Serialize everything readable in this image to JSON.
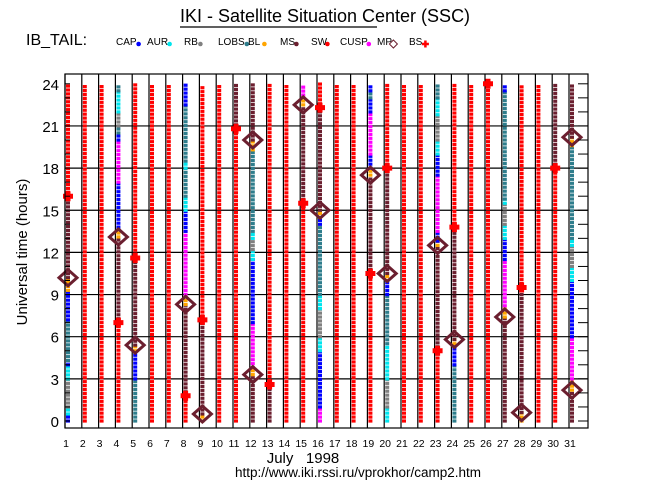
{
  "chart_data": {
    "type": "scatter",
    "title": "IKI - Satellite Situation Center (SSC)",
    "subtitle": "IB_TAIL:",
    "xlabel": "July   1998",
    "ylabel": "Universal time (hours)",
    "footer": "http://www.iki.rssi.ru/vprokhor/camp2.htm",
    "xlim": [
      1,
      31
    ],
    "ylim": [
      0,
      24
    ],
    "x_ticks": [
      1,
      2,
      3,
      4,
      5,
      6,
      7,
      8,
      9,
      10,
      11,
      12,
      13,
      14,
      15,
      16,
      17,
      18,
      19,
      20,
      21,
      22,
      23,
      24,
      25,
      26,
      27,
      28,
      29,
      30,
      31
    ],
    "y_ticks": [
      0,
      3,
      6,
      9,
      12,
      15,
      18,
      21,
      24
    ],
    "grid": true,
    "legend_position": "top",
    "legend": [
      {
        "key": "CAP",
        "label": "CAP",
        "color": "#0000ff",
        "marker": "dot"
      },
      {
        "key": "AUR",
        "label": "AUR",
        "color": "#00e5ee",
        "marker": "dot"
      },
      {
        "key": "RB",
        "label": "RB",
        "color": "#808080",
        "marker": "dot"
      },
      {
        "key": "LOBS",
        "label": "LOBS",
        "color": "#2e7d8c",
        "marker": "dot"
      },
      {
        "key": "BL",
        "label": "BL",
        "color": "#ffa500",
        "marker": "dot"
      },
      {
        "key": "MS",
        "label": "MS",
        "color": "#6b1f2f",
        "marker": "dot"
      },
      {
        "key": "SW",
        "label": "SW",
        "color": "#ff0000",
        "marker": "dot"
      },
      {
        "key": "CUSP",
        "label": "CUSP",
        "color": "#ff00ff",
        "marker": "dot"
      },
      {
        "key": "MP",
        "label": "MP",
        "color": "#6b1f2f",
        "marker": "diamond"
      },
      {
        "key": "BS",
        "label": "BS",
        "color": "#ff0000",
        "marker": "cross"
      }
    ],
    "days": [
      {
        "day": 1,
        "segments": [
          [
            0,
            0.5,
            "CAP"
          ],
          [
            0.5,
            1,
            "AUR"
          ],
          [
            1,
            3,
            "RB"
          ],
          [
            3,
            4,
            "AUR"
          ],
          [
            4,
            4.3,
            "CAP"
          ],
          [
            4.3,
            7.2,
            "LOBS"
          ],
          [
            7.2,
            9.3,
            "CAP"
          ],
          [
            9.3,
            10.2,
            "BL"
          ],
          [
            10.2,
            16,
            "MS"
          ],
          [
            16,
            24,
            "SW"
          ]
        ],
        "MP": [
          10.2
        ],
        "BS": [
          16
        ]
      },
      {
        "day": 2,
        "segments": [
          [
            0,
            24,
            "SW"
          ]
        ],
        "MP": [],
        "BS": []
      },
      {
        "day": 3,
        "segments": [
          [
            0,
            24,
            "SW"
          ]
        ],
        "MP": [],
        "BS": []
      },
      {
        "day": 4,
        "segments": [
          [
            0,
            7,
            "SW"
          ],
          [
            7,
            13.1,
            "MS"
          ],
          [
            13.1,
            13.8,
            "BL"
          ],
          [
            13.8,
            17,
            "CAP"
          ],
          [
            17,
            20,
            "CUSP"
          ],
          [
            20,
            20.5,
            "CAP"
          ],
          [
            20.5,
            21,
            "LOBS"
          ],
          [
            21,
            22,
            "RB"
          ],
          [
            22,
            23.5,
            "AUR"
          ],
          [
            23.5,
            24,
            "LOBS"
          ]
        ],
        "MP": [
          13.1
        ],
        "BS": [
          7
        ]
      },
      {
        "day": 5,
        "segments": [
          [
            0,
            3,
            "LOBS"
          ],
          [
            3,
            5,
            "CAP"
          ],
          [
            5,
            5.4,
            "BL"
          ],
          [
            5.4,
            11.6,
            "MS"
          ],
          [
            11.6,
            24,
            "SW"
          ]
        ],
        "MP": [
          5.4
        ],
        "BS": [
          11.6
        ]
      },
      {
        "day": 6,
        "segments": [
          [
            0,
            24,
            "SW"
          ]
        ],
        "MP": [],
        "BS": []
      },
      {
        "day": 7,
        "segments": [
          [
            0,
            24,
            "SW"
          ]
        ],
        "MP": [],
        "BS": []
      },
      {
        "day": 8,
        "segments": [
          [
            0,
            1.8,
            "SW"
          ],
          [
            1.8,
            8.3,
            "MS"
          ],
          [
            8.3,
            9,
            "BL"
          ],
          [
            9,
            13.5,
            "CUSP"
          ],
          [
            13.5,
            15,
            "CAP"
          ],
          [
            15,
            16,
            "AUR"
          ],
          [
            16,
            18,
            "LOBS"
          ],
          [
            18,
            18.5,
            "AUR"
          ],
          [
            18.5,
            22.5,
            "LOBS"
          ],
          [
            22.5,
            24,
            "CAP"
          ]
        ],
        "MP": [
          8.3
        ],
        "BS": [
          1.8
        ]
      },
      {
        "day": 9,
        "segments": [
          [
            0,
            0.5,
            "BL"
          ],
          [
            0.5,
            7.2,
            "MS"
          ],
          [
            7.2,
            24,
            "SW"
          ]
        ],
        "MP": [
          0.5
        ],
        "BS": [
          7.2
        ]
      },
      {
        "day": 10,
        "segments": [
          [
            0,
            24,
            "SW"
          ]
        ],
        "MP": [],
        "BS": []
      },
      {
        "day": 11,
        "segments": [
          [
            0,
            20.8,
            "SW"
          ],
          [
            20.8,
            24,
            "MS"
          ]
        ],
        "MP": [],
        "BS": [
          20.8
        ]
      },
      {
        "day": 12,
        "segments": [
          [
            0,
            3.3,
            "MS"
          ],
          [
            3.3,
            3.8,
            "BL"
          ],
          [
            3.8,
            7,
            "CUSP"
          ],
          [
            7,
            11.5,
            "CAP"
          ],
          [
            11.5,
            12.2,
            "AUR"
          ],
          [
            12.2,
            13,
            "RB"
          ],
          [
            13,
            13.5,
            "AUR"
          ],
          [
            13.5,
            19.3,
            "LOBS"
          ],
          [
            19.3,
            20,
            "BL"
          ],
          [
            20,
            24,
            "MS"
          ]
        ],
        "MP": [
          3.3,
          20
        ],
        "BS": []
      },
      {
        "day": 13,
        "segments": [
          [
            0,
            2.6,
            "MS"
          ],
          [
            2.6,
            24,
            "SW"
          ]
        ],
        "MP": [],
        "BS": [
          2.6
        ]
      },
      {
        "day": 14,
        "segments": [
          [
            0,
            24,
            "SW"
          ]
        ],
        "MP": [],
        "BS": []
      },
      {
        "day": 15,
        "segments": [
          [
            0,
            15.5,
            "SW"
          ],
          [
            15.5,
            22.5,
            "MS"
          ],
          [
            22.5,
            23.2,
            "BL"
          ],
          [
            23.2,
            24,
            "CUSP"
          ]
        ],
        "MP": [
          22.5
        ],
        "BS": [
          15.5
        ]
      },
      {
        "day": 16,
        "segments": [
          [
            0,
            1,
            "CUSP"
          ],
          [
            1,
            5,
            "CAP"
          ],
          [
            5,
            6,
            "AUR"
          ],
          [
            6,
            8,
            "RB"
          ],
          [
            8,
            9,
            "AUR"
          ],
          [
            9,
            14,
            "LOBS"
          ],
          [
            14,
            14.5,
            "CAP"
          ],
          [
            14.5,
            15,
            "BL"
          ],
          [
            15,
            22.3,
            "MS"
          ],
          [
            22.3,
            24,
            "SW"
          ]
        ],
        "MP": [
          15
        ],
        "BS": [
          22.3
        ]
      },
      {
        "day": 17,
        "segments": [
          [
            0,
            24,
            "SW"
          ]
        ],
        "MP": [],
        "BS": []
      },
      {
        "day": 18,
        "segments": [
          [
            0,
            24,
            "SW"
          ]
        ],
        "MP": [],
        "BS": []
      },
      {
        "day": 19,
        "segments": [
          [
            0,
            10.5,
            "SW"
          ],
          [
            10.5,
            17.5,
            "MS"
          ],
          [
            17.5,
            18,
            "BL"
          ],
          [
            18,
            19,
            "CAP"
          ],
          [
            19,
            22,
            "CUSP"
          ],
          [
            22,
            23,
            "CAP"
          ],
          [
            23,
            23.5,
            "LOBS"
          ],
          [
            23.5,
            24,
            "CAP"
          ]
        ],
        "MP": [
          17.5
        ],
        "BS": [
          10.5
        ]
      },
      {
        "day": 20,
        "segments": [
          [
            0,
            1,
            "AUR"
          ],
          [
            1,
            3,
            "RB"
          ],
          [
            3,
            5.5,
            "AUR"
          ],
          [
            5.5,
            9,
            "LOBS"
          ],
          [
            9,
            10,
            "CAP"
          ],
          [
            10,
            10.5,
            "BL"
          ],
          [
            10.5,
            18,
            "MS"
          ],
          [
            18,
            24,
            "SW"
          ]
        ],
        "MP": [
          10.5
        ],
        "BS": [
          18
        ]
      },
      {
        "day": 21,
        "segments": [
          [
            0,
            24,
            "SW"
          ]
        ],
        "MP": [],
        "BS": []
      },
      {
        "day": 22,
        "segments": [
          [
            0,
            24,
            "SW"
          ]
        ],
        "MP": [],
        "BS": []
      },
      {
        "day": 23,
        "segments": [
          [
            0,
            5,
            "SW"
          ],
          [
            5,
            12.5,
            "MS"
          ],
          [
            12.5,
            12.8,
            "BL"
          ],
          [
            12.8,
            13.5,
            "CAP"
          ],
          [
            13.5,
            17.5,
            "CUSP"
          ],
          [
            17.5,
            19,
            "CAP"
          ],
          [
            19,
            20,
            "AUR"
          ],
          [
            20,
            21.8,
            "RB"
          ],
          [
            21.8,
            23,
            "AUR"
          ],
          [
            23,
            24,
            "LOBS"
          ]
        ],
        "MP": [
          12.5
        ],
        "BS": [
          5
        ]
      },
      {
        "day": 24,
        "segments": [
          [
            0,
            4,
            "LOBS"
          ],
          [
            4,
            5.5,
            "CAP"
          ],
          [
            5.5,
            5.8,
            "BL"
          ],
          [
            5.8,
            13.8,
            "MS"
          ],
          [
            13.8,
            24,
            "SW"
          ]
        ],
        "MP": [
          5.8
        ],
        "BS": [
          13.8
        ]
      },
      {
        "day": 25,
        "segments": [
          [
            0,
            24,
            "SW"
          ]
        ],
        "MP": [],
        "BS": []
      },
      {
        "day": 26,
        "segments": [
          [
            0,
            24,
            "SW"
          ]
        ],
        "MP": [],
        "BS": [
          24
        ]
      },
      {
        "day": 27,
        "segments": [
          [
            0,
            7.4,
            "MS"
          ],
          [
            7.4,
            8.2,
            "BL"
          ],
          [
            8.2,
            11.5,
            "CUSP"
          ],
          [
            11.5,
            13,
            "CAP"
          ],
          [
            13,
            14,
            "AUR"
          ],
          [
            14,
            15.5,
            "RB"
          ],
          [
            15.5,
            15.8,
            "AUR"
          ],
          [
            15.8,
            23.5,
            "LOBS"
          ],
          [
            23.5,
            24,
            "CAP"
          ]
        ],
        "MP": [
          7.4
        ],
        "BS": []
      },
      {
        "day": 28,
        "segments": [
          [
            0,
            0.6,
            "BL"
          ],
          [
            0.6,
            9.5,
            "MS"
          ],
          [
            9.5,
            24,
            "SW"
          ]
        ],
        "MP": [
          0.6
        ],
        "BS": [
          9.5
        ]
      },
      {
        "day": 29,
        "segments": [
          [
            0,
            24,
            "SW"
          ]
        ],
        "MP": [],
        "BS": []
      },
      {
        "day": 30,
        "segments": [
          [
            0,
            18,
            "SW"
          ],
          [
            18,
            24,
            "MS"
          ]
        ],
        "MP": [],
        "BS": [
          18
        ]
      },
      {
        "day": 31,
        "segments": [
          [
            0,
            2.2,
            "MS"
          ],
          [
            2.2,
            3,
            "BL"
          ],
          [
            3,
            6,
            "CUSP"
          ],
          [
            6,
            10,
            "CAP"
          ],
          [
            10,
            11,
            "AUR"
          ],
          [
            11,
            12.5,
            "RB"
          ],
          [
            12.5,
            13,
            "AUR"
          ],
          [
            13,
            19.6,
            "LOBS"
          ],
          [
            19.6,
            20.2,
            "BL"
          ],
          [
            20.2,
            24,
            "MS"
          ]
        ],
        "MP": [
          2.2,
          20.2
        ],
        "BS": []
      }
    ]
  }
}
